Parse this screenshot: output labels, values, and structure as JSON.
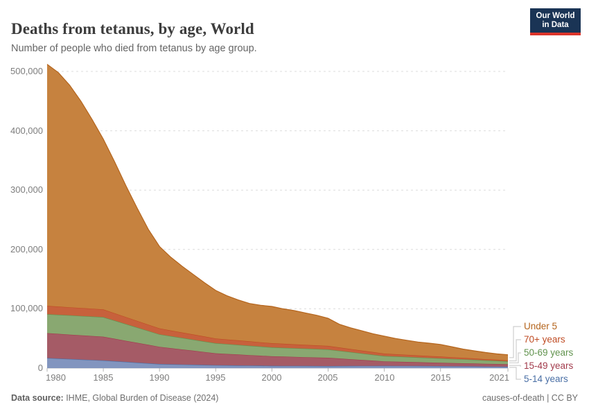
{
  "header": {
    "title": "Deaths from tetanus, by age, World",
    "subtitle": "Number of people who died from tetanus by age group.",
    "logo": {
      "line1": "Our World",
      "line2": "in Data"
    }
  },
  "footer": {
    "source_bold": "Data source:",
    "source_rest": " IHME, Global Burden of Disease (2024)",
    "license": "causes-of-death | CC BY"
  },
  "chart_data": {
    "type": "area",
    "stacked": true,
    "title": "Deaths from tetanus, by age, World",
    "subtitle": "Number of people who died from tetanus by age group.",
    "xlim": [
      1980,
      2021
    ],
    "ylim": [
      0,
      500000
    ],
    "grid": "horizontal-dashed",
    "legend_position": "right-of-plot",
    "ytick_values": [
      0,
      100000,
      200000,
      300000,
      400000,
      500000
    ],
    "ytick_labels": [
      "0",
      "100,000",
      "200,000",
      "300,000",
      "400,000",
      "500,000"
    ],
    "xticks": [
      1980,
      1985,
      1990,
      1995,
      2000,
      2005,
      2010,
      2015,
      2021
    ],
    "years": [
      1980,
      1981,
      1982,
      1983,
      1984,
      1985,
      1986,
      1987,
      1988,
      1989,
      1990,
      1991,
      1992,
      1993,
      1994,
      1995,
      1996,
      1997,
      1998,
      1999,
      2000,
      2001,
      2002,
      2003,
      2004,
      2005,
      2006,
      2007,
      2008,
      2009,
      2010,
      2011,
      2012,
      2013,
      2014,
      2015,
      2016,
      2017,
      2018,
      2019,
      2020,
      2021
    ],
    "series_bottom_to_top": [
      {
        "name": "5-14 years",
        "line_color": "#4a6fa5",
        "fill_color": "#8295bf",
        "values": [
          17000,
          16200,
          15400,
          14600,
          13800,
          13000,
          11800,
          10600,
          9400,
          8200,
          7000,
          6600,
          6200,
          5800,
          5400,
          5000,
          4800,
          4600,
          4400,
          4200,
          4000,
          3900,
          3800,
          3700,
          3600,
          3500,
          3600,
          3700,
          3800,
          3900,
          4000,
          3900,
          3800,
          3700,
          3600,
          3500,
          3300,
          3200,
          3000,
          2800,
          2700,
          2500
        ]
      },
      {
        "name": "15-49 years",
        "line_color": "#a23b4c",
        "fill_color": "#a55b66",
        "values": [
          42000,
          41600,
          41200,
          40800,
          40400,
          40000,
          37800,
          35600,
          33400,
          31200,
          29000,
          27200,
          25400,
          23600,
          21800,
          20000,
          19200,
          18400,
          17600,
          16800,
          16000,
          15600,
          15200,
          14800,
          14400,
          14000,
          12700,
          11400,
          10100,
          8800,
          7500,
          7100,
          6700,
          6300,
          5900,
          5500,
          5300,
          5000,
          4800,
          4500,
          4300,
          4000
        ]
      },
      {
        "name": "50-69 years",
        "line_color": "#61934e",
        "fill_color": "#89a871",
        "values": [
          32000,
          32200,
          32400,
          32600,
          32800,
          33000,
          30600,
          28200,
          25800,
          23400,
          21000,
          20200,
          19400,
          18600,
          17800,
          17000,
          16600,
          16200,
          15800,
          15400,
          15000,
          14800,
          14600,
          14400,
          14200,
          14000,
          13000,
          12000,
          11000,
          10000,
          9000,
          8700,
          8400,
          8100,
          7800,
          7500,
          7100,
          6700,
          6300,
          5800,
          5400,
          5000
        ]
      },
      {
        "name": "70+ years",
        "line_color": "#bf4b23",
        "fill_color": "#c7613c",
        "values": [
          14000,
          13800,
          13600,
          13400,
          13200,
          13000,
          12400,
          11800,
          11200,
          10600,
          10000,
          9600,
          9200,
          8800,
          8400,
          8000,
          7800,
          7600,
          7400,
          7200,
          7000,
          6800,
          6600,
          6400,
          6200,
          6000,
          5600,
          5200,
          4800,
          4400,
          4000,
          3800,
          3600,
          3400,
          3200,
          3000,
          2800,
          2500,
          2300,
          2000,
          1800,
          1500
        ]
      },
      {
        "name": "Under 5",
        "line_color": "#b4641c",
        "fill_color": "#c6823f",
        "values": [
          407000,
          394200,
          374400,
          348600,
          318800,
          287000,
          255400,
          221800,
          190200,
          160600,
          138000,
          123400,
          111800,
          101200,
          90600,
          81000,
          73600,
          68200,
          63800,
          62400,
          62000,
          58900,
          56800,
          53700,
          50600,
          46500,
          39100,
          35700,
          33300,
          30900,
          29500,
          26500,
          24500,
          22500,
          21500,
          20500,
          17600,
          14700,
          12800,
          11300,
          9900,
          9500
        ]
      }
    ],
    "legend_top_to_bottom": [
      "Under 5",
      "70+ years",
      "50-69 years",
      "15-49 years",
      "5-14 years"
    ]
  }
}
